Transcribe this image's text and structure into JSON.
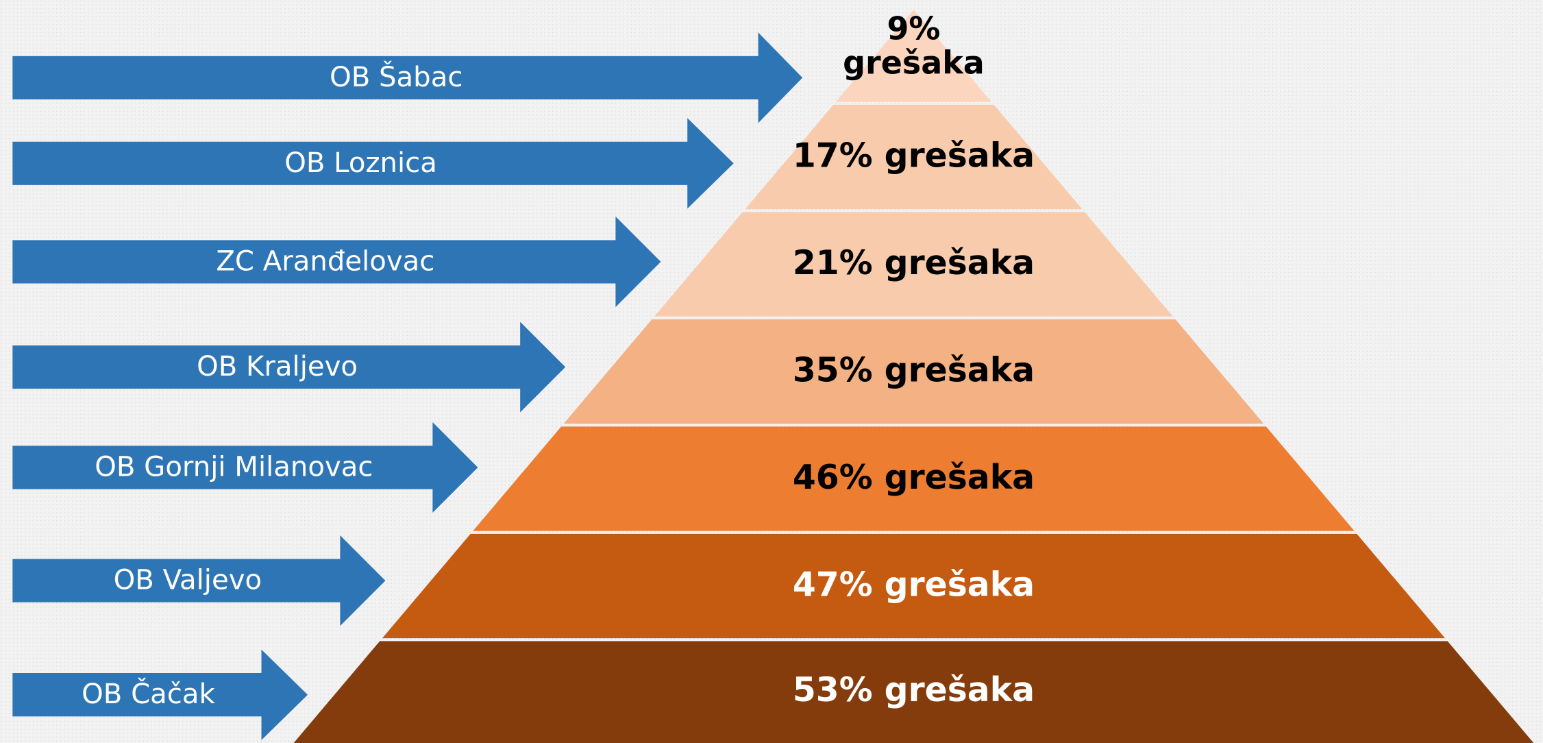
{
  "levels": [
    {
      "hospital": "OB Šabac",
      "label": "9% grešaka"
    },
    {
      "hospital": "OB Loznica",
      "label": "17% grešaka"
    },
    {
      "hospital": "ZC Aranđelovac",
      "label": "21% grešaka"
    },
    {
      "hospital": "OB Kraljevo",
      "label": "35% grešaka"
    },
    {
      "hospital": "OB Gornji Milanovac",
      "label": "46% grešaka"
    },
    {
      "hospital": "OB Valjevo",
      "label": "47% grešaka"
    },
    {
      "hospital": "OB Čačak",
      "label": "53% grešaka"
    }
  ]
}
